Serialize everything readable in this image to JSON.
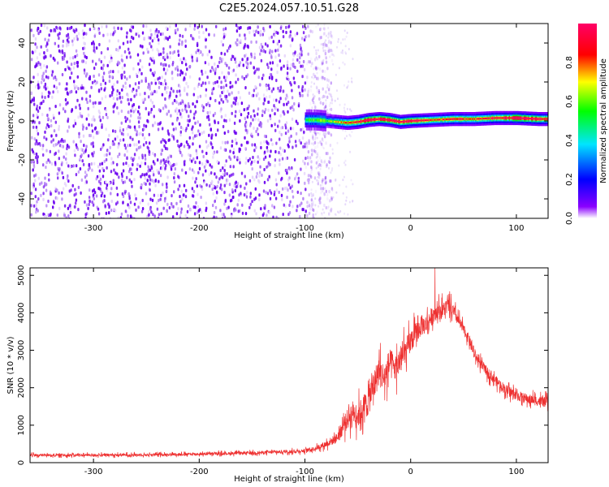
{
  "title": "C2E5.2024.057.10.51.G28",
  "colors": {
    "snr_line": "#ee3030",
    "spectrogram_points": "#6a00f0",
    "colorbar_stops": [
      "#ffffff",
      "#8a00ff",
      "#0000ff",
      "#00e5ff",
      "#00ff00",
      "#ffff00",
      "#ff0000",
      "#ff0066"
    ]
  },
  "chart_data": [
    {
      "type": "heatmap",
      "title": "",
      "xlabel": "Height of straight line (km)",
      "ylabel": "Frequency (Hz)",
      "xlim": [
        -360,
        130
      ],
      "ylim": [
        -50,
        50
      ],
      "xticks": [
        "-300",
        "-200",
        "-100",
        "0",
        "100"
      ],
      "xtick_values": [
        -300,
        -200,
        -100,
        0,
        100
      ],
      "yticks": [
        "-40",
        "-20",
        "0",
        "20",
        "40"
      ],
      "ytick_values": [
        -40,
        -20,
        0,
        20,
        40
      ],
      "grid": false,
      "colorbar": {
        "label": "Normalized spectral amplitude",
        "range": [
          0.0,
          1.0
        ],
        "ticks": [
          "0.0",
          "0.2",
          "0.4",
          "0.6",
          "0.8"
        ],
        "tick_values": [
          0.0,
          0.2,
          0.4,
          0.6,
          0.8
        ]
      },
      "noise_region": {
        "x_range": [
          -360,
          -90
        ],
        "freq_range": [
          -50,
          50
        ],
        "amplitude": 0.1
      },
      "signal_band": {
        "x": [
          -100,
          -90,
          -80,
          -70,
          -60,
          -50,
          -40,
          -30,
          -20,
          -10,
          0,
          20,
          40,
          60,
          80,
          100,
          120,
          130
        ],
        "center_freq": [
          0.5,
          0.5,
          0,
          -0.5,
          -1,
          -0.5,
          0.5,
          1,
          0.5,
          -0.5,
          0,
          0.5,
          1,
          1,
          1.5,
          1.5,
          1,
          1
        ],
        "peak_amplitude": [
          0.45,
          0.5,
          0.55,
          0.6,
          0.7,
          0.8,
          0.95,
          0.9,
          0.95,
          0.95,
          0.9,
          0.75,
          0.75,
          0.75,
          0.8,
          0.95,
          0.85,
          0.8
        ]
      }
    },
    {
      "type": "line",
      "title": "",
      "xlabel": "Height of straight line (km)",
      "ylabel": "SNR (10 * v/v)",
      "xlim": [
        -360,
        130
      ],
      "ylim": [
        0,
        5200
      ],
      "xticks": [
        "-300",
        "-200",
        "-100",
        "0",
        "100"
      ],
      "xtick_values": [
        -300,
        -200,
        -100,
        0,
        100
      ],
      "yticks": [
        "0",
        "1000",
        "2000",
        "3000",
        "4000",
        "5000"
      ],
      "ytick_values": [
        0,
        1000,
        2000,
        3000,
        4000,
        5000
      ],
      "grid": false,
      "series": [
        {
          "x": [
            -360,
            -300,
            -250,
            -200,
            -150,
            -110,
            -100,
            -90,
            -80,
            -70,
            -65,
            -60,
            -55,
            -50,
            -45,
            -40,
            -35,
            -30,
            -25,
            -20,
            -15,
            -10,
            -5,
            0,
            5,
            10,
            15,
            20,
            25,
            30,
            35,
            40,
            45,
            50,
            55,
            60,
            70,
            80,
            90,
            100,
            110,
            120,
            130
          ],
          "y": [
            200,
            200,
            210,
            230,
            260,
            300,
            320,
            380,
            500,
            650,
            900,
            1150,
            1350,
            1250,
            1450,
            1650,
            2050,
            2450,
            2250,
            2650,
            2500,
            2700,
            2950,
            3250,
            3450,
            3650,
            3700,
            3900,
            4050,
            4050,
            4200,
            4050,
            3800,
            3550,
            3300,
            2900,
            2500,
            2200,
            1950,
            1800,
            1700,
            1650,
            1600
          ],
          "noise_amplitude": [
            80,
            80,
            80,
            80,
            90,
            100,
            110,
            120,
            200,
            300,
            450,
            600,
            700,
            700,
            800,
            900,
            900,
            900,
            900,
            900,
            800,
            800,
            750,
            700,
            650,
            600,
            550,
            550,
            500,
            500,
            450,
            400,
            350,
            300,
            300,
            300,
            300,
            300,
            300,
            300,
            300,
            300,
            300
          ],
          "peak": {
            "x": 23,
            "y": 5200
          }
        }
      ]
    }
  ]
}
